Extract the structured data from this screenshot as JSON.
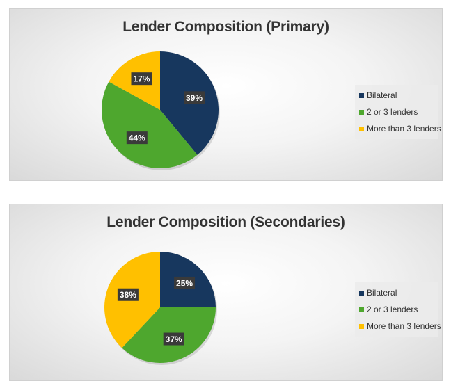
{
  "colors": {
    "Bilateral": "#17375e",
    "2 or 3 lenders": "#4ea72e",
    "More than 3 lenders": "#ffc000"
  },
  "chart_data": [
    {
      "type": "pie",
      "title": "Lender Composition (Primary)",
      "categories": [
        "Bilateral",
        "2 or 3 lenders",
        "More than 3 lenders"
      ],
      "values": [
        39,
        44,
        17
      ],
      "labels": [
        "39%",
        "44%",
        "17%"
      ],
      "legend": "right"
    },
    {
      "type": "pie",
      "title": "Lender Composition (Secondaries)",
      "categories": [
        "Bilateral",
        "2 or 3 lenders",
        "More than 3 lenders"
      ],
      "values": [
        25,
        37,
        38
      ],
      "labels": [
        "25%",
        "37%",
        "38%"
      ],
      "legend": "right"
    }
  ]
}
